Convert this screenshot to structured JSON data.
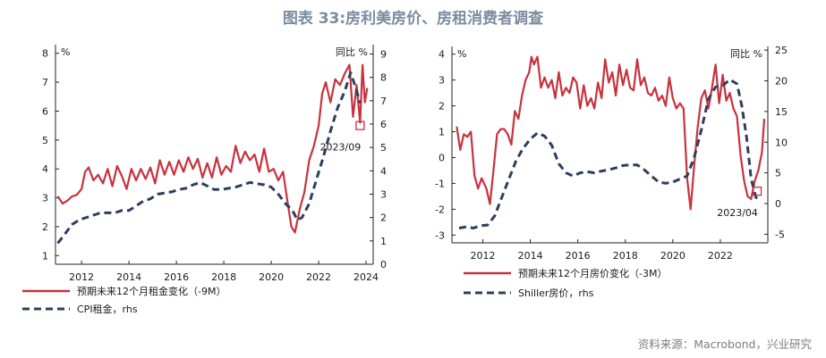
{
  "title": "图表 33:房利美房价、房租消费者调查",
  "source": "资料来源：Macrobond，兴业研究",
  "colors": {
    "red": "#c8323e",
    "navy": "#2d3f5d"
  },
  "chart_data": [
    {
      "type": "line",
      "x_ticks": [
        "2012",
        "2014",
        "2016",
        "2018",
        "2020",
        "2022",
        "2024"
      ],
      "x_range": [
        2010.9,
        2024.3
      ],
      "left_axis": {
        "unit": "%",
        "range": [
          0.7,
          8.3
        ],
        "ticks": [
          1,
          2,
          3,
          4,
          5,
          6,
          7,
          8
        ]
      },
      "right_axis": {
        "unit": "同比 %",
        "range": [
          0,
          9.4
        ],
        "ticks": [
          0,
          1,
          2,
          3,
          4,
          5,
          6,
          7,
          8,
          9
        ]
      },
      "series": [
        {
          "name": "预期未来12个月租金变化（-9M）",
          "axis": "left",
          "color": "#c8323e",
          "style": "solid",
          "points": [
            [
              2011.0,
              3.05
            ],
            [
              2011.2,
              2.8
            ],
            [
              2011.4,
              2.9
            ],
            [
              2011.6,
              3.05
            ],
            [
              2011.8,
              3.1
            ],
            [
              2012.0,
              3.3
            ],
            [
              2012.15,
              3.9
            ],
            [
              2012.3,
              4.05
            ],
            [
              2012.5,
              3.6
            ],
            [
              2012.7,
              3.8
            ],
            [
              2012.9,
              3.5
            ],
            [
              2013.1,
              4.0
            ],
            [
              2013.3,
              3.4
            ],
            [
              2013.5,
              4.1
            ],
            [
              2013.7,
              3.75
            ],
            [
              2013.9,
              3.3
            ],
            [
              2014.1,
              4.0
            ],
            [
              2014.3,
              3.6
            ],
            [
              2014.5,
              4.0
            ],
            [
              2014.7,
              3.65
            ],
            [
              2014.9,
              4.05
            ],
            [
              2015.1,
              3.5
            ],
            [
              2015.3,
              4.3
            ],
            [
              2015.5,
              3.8
            ],
            [
              2015.7,
              4.25
            ],
            [
              2015.9,
              3.8
            ],
            [
              2016.1,
              4.3
            ],
            [
              2016.3,
              3.9
            ],
            [
              2016.5,
              4.4
            ],
            [
              2016.7,
              4.0
            ],
            [
              2016.9,
              4.35
            ],
            [
              2017.1,
              3.7
            ],
            [
              2017.3,
              4.2
            ],
            [
              2017.5,
              3.7
            ],
            [
              2017.7,
              4.4
            ],
            [
              2017.9,
              3.8
            ],
            [
              2018.1,
              4.1
            ],
            [
              2018.3,
              3.9
            ],
            [
              2018.5,
              4.8
            ],
            [
              2018.7,
              4.2
            ],
            [
              2018.9,
              4.6
            ],
            [
              2019.1,
              4.3
            ],
            [
              2019.3,
              4.5
            ],
            [
              2019.5,
              3.9
            ],
            [
              2019.7,
              4.7
            ],
            [
              2019.9,
              3.9
            ],
            [
              2020.1,
              4.0
            ],
            [
              2020.3,
              3.6
            ],
            [
              2020.5,
              3.9
            ],
            [
              2020.7,
              2.8
            ],
            [
              2020.85,
              2.0
            ],
            [
              2021.0,
              1.8
            ],
            [
              2021.2,
              2.6
            ],
            [
              2021.4,
              3.2
            ],
            [
              2021.6,
              4.3
            ],
            [
              2021.8,
              4.8
            ],
            [
              2022.0,
              5.5
            ],
            [
              2022.15,
              6.6
            ],
            [
              2022.3,
              7.0
            ],
            [
              2022.5,
              6.3
            ],
            [
              2022.7,
              7.1
            ],
            [
              2022.9,
              6.9
            ],
            [
              2023.1,
              7.3
            ],
            [
              2023.3,
              7.6
            ],
            [
              2023.45,
              5.8
            ],
            [
              2023.6,
              6.9
            ],
            [
              2023.75,
              5.6
            ],
            [
              2023.85,
              7.6
            ],
            [
              2023.95,
              6.3
            ],
            [
              2024.05,
              6.8
            ]
          ]
        },
        {
          "name": "CPI租金，rhs",
          "axis": "right",
          "color": "#2d3f5d",
          "style": "dashed",
          "points": [
            [
              2011.0,
              0.9
            ],
            [
              2011.3,
              1.3
            ],
            [
              2011.6,
              1.7
            ],
            [
              2011.9,
              1.9
            ],
            [
              2012.2,
              2.0
            ],
            [
              2012.5,
              2.1
            ],
            [
              2012.8,
              2.2
            ],
            [
              2013.1,
              2.2
            ],
            [
              2013.4,
              2.2
            ],
            [
              2013.7,
              2.3
            ],
            [
              2014.0,
              2.3
            ],
            [
              2014.3,
              2.5
            ],
            [
              2014.6,
              2.7
            ],
            [
              2014.9,
              2.8
            ],
            [
              2015.2,
              3.0
            ],
            [
              2015.5,
              3.05
            ],
            [
              2015.8,
              3.1
            ],
            [
              2016.1,
              3.2
            ],
            [
              2016.4,
              3.25
            ],
            [
              2016.7,
              3.4
            ],
            [
              2017.0,
              3.5
            ],
            [
              2017.3,
              3.35
            ],
            [
              2017.6,
              3.2
            ],
            [
              2017.9,
              3.2
            ],
            [
              2018.2,
              3.25
            ],
            [
              2018.5,
              3.3
            ],
            [
              2018.8,
              3.4
            ],
            [
              2019.1,
              3.5
            ],
            [
              2019.4,
              3.45
            ],
            [
              2019.7,
              3.4
            ],
            [
              2020.0,
              3.3
            ],
            [
              2020.3,
              3.0
            ],
            [
              2020.6,
              2.6
            ],
            [
              2020.9,
              2.3
            ],
            [
              2021.1,
              1.9
            ],
            [
              2021.3,
              2.0
            ],
            [
              2021.6,
              2.6
            ],
            [
              2021.9,
              3.6
            ],
            [
              2022.2,
              4.6
            ],
            [
              2022.5,
              5.7
            ],
            [
              2022.8,
              6.7
            ],
            [
              2023.1,
              7.4
            ],
            [
              2023.35,
              8.2
            ],
            [
              2023.55,
              7.6
            ],
            [
              2023.75,
              6.9
            ]
          ]
        }
      ],
      "annotation": {
        "label": "2023/09",
        "x": 2023.75,
        "y": 5.5,
        "axis": "left"
      }
    },
    {
      "type": "line",
      "x_ticks": [
        "2012",
        "2014",
        "2016",
        "2018",
        "2020",
        "2022"
      ],
      "x_range": [
        2010.7,
        2024.0
      ],
      "left_axis": {
        "unit": "%",
        "range": [
          -3.3,
          4.3
        ],
        "ticks": [
          -3,
          -2,
          -1,
          0,
          1,
          2,
          3,
          4
        ]
      },
      "right_axis": {
        "unit": "同比 %",
        "range": [
          -6.4,
          25.6
        ],
        "ticks": [
          -5,
          0,
          5,
          10,
          15,
          20,
          25
        ]
      },
      "series": [
        {
          "name": "预期未来12个月房价变化（-3M）",
          "axis": "left",
          "color": "#c8323e",
          "style": "solid",
          "points": [
            [
              2010.9,
              1.2
            ],
            [
              2011.05,
              0.3
            ],
            [
              2011.2,
              0.9
            ],
            [
              2011.35,
              0.8
            ],
            [
              2011.5,
              1.0
            ],
            [
              2011.65,
              -0.7
            ],
            [
              2011.8,
              -1.2
            ],
            [
              2011.95,
              -0.8
            ],
            [
              2012.15,
              -1.2
            ],
            [
              2012.3,
              -1.8
            ],
            [
              2012.45,
              -0.5
            ],
            [
              2012.6,
              0.9
            ],
            [
              2012.75,
              1.1
            ],
            [
              2012.9,
              1.1
            ],
            [
              2013.05,
              0.9
            ],
            [
              2013.2,
              0.5
            ],
            [
              2013.35,
              1.8
            ],
            [
              2013.5,
              1.5
            ],
            [
              2013.65,
              2.4
            ],
            [
              2013.8,
              3.0
            ],
            [
              2013.95,
              3.3
            ],
            [
              2014.05,
              3.9
            ],
            [
              2014.15,
              3.6
            ],
            [
              2014.3,
              3.9
            ],
            [
              2014.45,
              2.7
            ],
            [
              2014.6,
              3.1
            ],
            [
              2014.75,
              2.7
            ],
            [
              2014.9,
              3.0
            ],
            [
              2015.05,
              2.3
            ],
            [
              2015.2,
              3.3
            ],
            [
              2015.35,
              2.4
            ],
            [
              2015.5,
              2.7
            ],
            [
              2015.65,
              2.5
            ],
            [
              2015.8,
              3.1
            ],
            [
              2015.95,
              2.9
            ],
            [
              2016.1,
              1.9
            ],
            [
              2016.25,
              2.8
            ],
            [
              2016.4,
              2.0
            ],
            [
              2016.55,
              2.3
            ],
            [
              2016.7,
              1.9
            ],
            [
              2016.85,
              2.9
            ],
            [
              2017.0,
              2.3
            ],
            [
              2017.15,
              3.8
            ],
            [
              2017.3,
              2.9
            ],
            [
              2017.45,
              3.3
            ],
            [
              2017.6,
              2.4
            ],
            [
              2017.75,
              3.6
            ],
            [
              2017.9,
              2.8
            ],
            [
              2018.05,
              3.4
            ],
            [
              2018.2,
              2.7
            ],
            [
              2018.35,
              2.6
            ],
            [
              2018.5,
              3.8
            ],
            [
              2018.65,
              2.8
            ],
            [
              2018.8,
              3.1
            ],
            [
              2018.95,
              2.5
            ],
            [
              2019.1,
              2.4
            ],
            [
              2019.25,
              2.7
            ],
            [
              2019.4,
              2.2
            ],
            [
              2019.55,
              2.4
            ],
            [
              2019.7,
              2.0
            ],
            [
              2019.85,
              3.1
            ],
            [
              2020.0,
              2.3
            ],
            [
              2020.15,
              1.9
            ],
            [
              2020.3,
              2.1
            ],
            [
              2020.45,
              1.9
            ],
            [
              2020.6,
              -0.8
            ],
            [
              2020.75,
              -2.0
            ],
            [
              2020.9,
              -0.3
            ],
            [
              2021.05,
              1.2
            ],
            [
              2021.2,
              2.3
            ],
            [
              2021.35,
              2.6
            ],
            [
              2021.5,
              1.9
            ],
            [
              2021.65,
              2.7
            ],
            [
              2021.8,
              3.6
            ],
            [
              2021.95,
              2.1
            ],
            [
              2022.1,
              3.2
            ],
            [
              2022.25,
              2.2
            ],
            [
              2022.4,
              2.5
            ],
            [
              2022.55,
              1.9
            ],
            [
              2022.7,
              1.6
            ],
            [
              2022.85,
              0.1
            ],
            [
              2023.0,
              -0.9
            ],
            [
              2023.15,
              -1.5
            ],
            [
              2023.3,
              -1.6
            ],
            [
              2023.45,
              -0.9
            ],
            [
              2023.6,
              -0.5
            ],
            [
              2023.75,
              0.2
            ],
            [
              2023.85,
              1.5
            ]
          ]
        },
        {
          "name": "Shiller房价，rhs",
          "axis": "right",
          "color": "#2d3f5d",
          "style": "dashed",
          "points": [
            [
              2011.0,
              -4.0
            ],
            [
              2011.3,
              -3.8
            ],
            [
              2011.6,
              -4.0
            ],
            [
              2011.9,
              -3.6
            ],
            [
              2012.2,
              -3.5
            ],
            [
              2012.5,
              -2.0
            ],
            [
              2012.8,
              1.0
            ],
            [
              2013.1,
              4.0
            ],
            [
              2013.4,
              7.0
            ],
            [
              2013.7,
              9.0
            ],
            [
              2014.0,
              10.5
            ],
            [
              2014.3,
              11.5
            ],
            [
              2014.6,
              11.0
            ],
            [
              2014.9,
              9.5
            ],
            [
              2015.2,
              6.5
            ],
            [
              2015.5,
              5.0
            ],
            [
              2015.8,
              4.5
            ],
            [
              2016.1,
              5.0
            ],
            [
              2016.4,
              5.2
            ],
            [
              2016.7,
              5.0
            ],
            [
              2017.0,
              5.3
            ],
            [
              2017.3,
              5.5
            ],
            [
              2017.6,
              5.8
            ],
            [
              2017.9,
              6.2
            ],
            [
              2018.2,
              6.3
            ],
            [
              2018.5,
              6.3
            ],
            [
              2018.8,
              5.5
            ],
            [
              2019.1,
              4.5
            ],
            [
              2019.4,
              3.5
            ],
            [
              2019.7,
              3.3
            ],
            [
              2020.0,
              3.5
            ],
            [
              2020.3,
              4.0
            ],
            [
              2020.6,
              4.5
            ],
            [
              2020.9,
              7.5
            ],
            [
              2021.2,
              12.0
            ],
            [
              2021.5,
              17.0
            ],
            [
              2021.8,
              19.0
            ],
            [
              2022.1,
              19.2
            ],
            [
              2022.4,
              20.2
            ],
            [
              2022.7,
              19.5
            ],
            [
              2022.9,
              16.0
            ],
            [
              2023.1,
              11.0
            ],
            [
              2023.3,
              4.0
            ],
            [
              2023.5,
              1.0
            ],
            [
              2023.7,
              0.5
            ]
          ]
        }
      ],
      "annotation": {
        "label": "2023/04",
        "x": 2023.55,
        "y": -1.3,
        "axis": "left"
      }
    }
  ]
}
